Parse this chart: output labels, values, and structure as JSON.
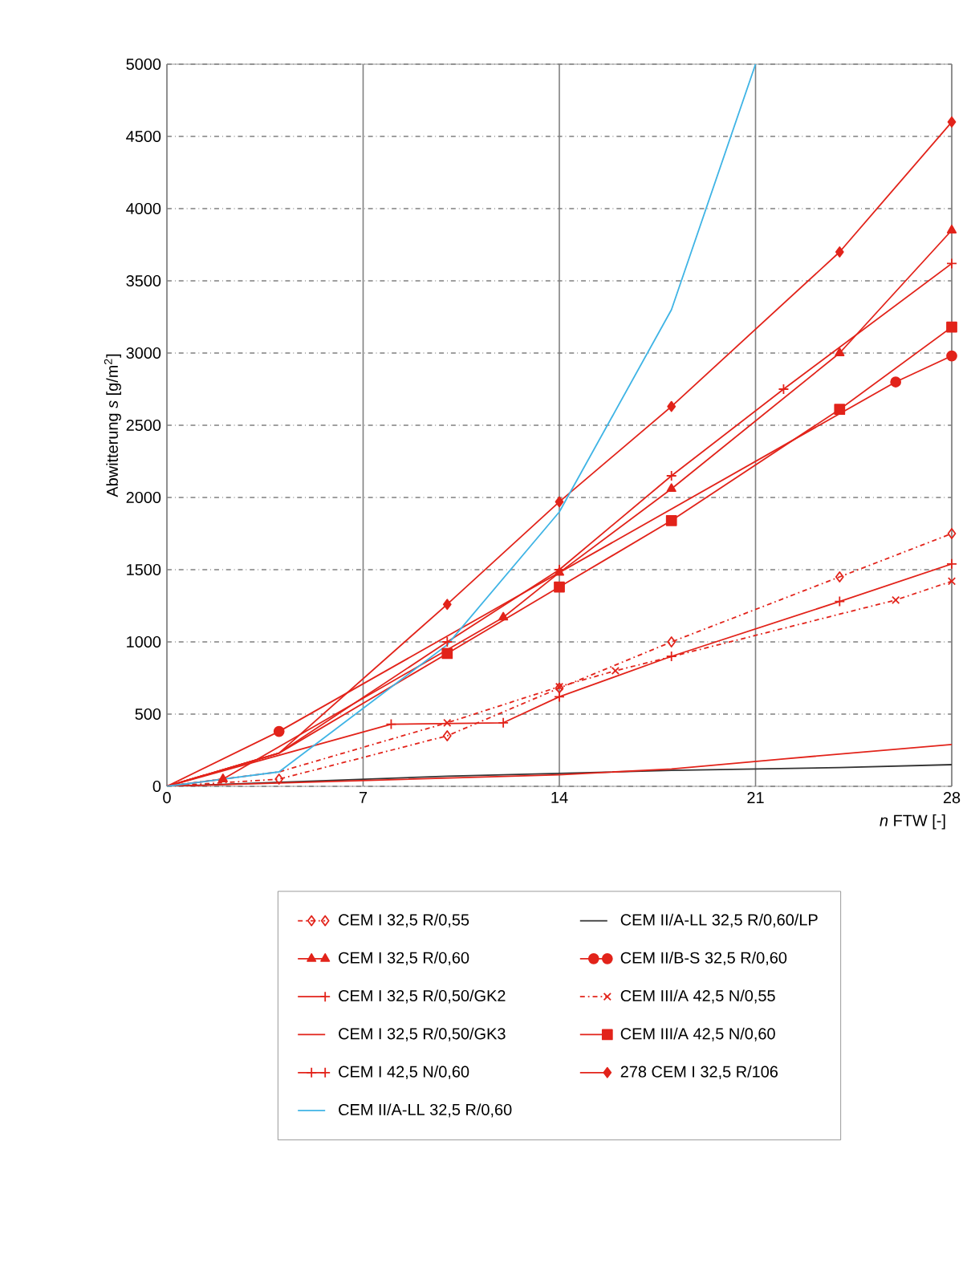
{
  "chart_data": {
    "type": "line",
    "xlabel": "*n* FTW  [-]",
    "ylabel": "Abwitterung *s*  [g/m$^{2}$]",
    "xlim": [
      0,
      28
    ],
    "xticks": [
      0,
      7,
      14,
      21,
      28
    ],
    "ylim": [
      0,
      5000
    ],
    "yticks": [
      0,
      500,
      1000,
      1500,
      2000,
      2500,
      3000,
      3500,
      4000,
      4500,
      5000
    ],
    "grid": true,
    "legend": "bottom",
    "series": [
      {
        "name": "CEM I 32,5 R/0,55",
        "color": "#e2231a",
        "line_style": "dashed",
        "marker": "diamond",
        "x": [
          0,
          4,
          10,
          14,
          18,
          24,
          28
        ],
        "values": [
          0,
          50,
          350,
          680,
          1000,
          1450,
          1750
        ]
      },
      {
        "name": "CEM I 32,5 R/0,60",
        "color": "#e2231a",
        "line_style": "solid",
        "marker": "triangle",
        "x": [
          0,
          2,
          12,
          14,
          18,
          24,
          28
        ],
        "values": [
          0,
          50,
          1170,
          1480,
          2060,
          3000,
          3850
        ]
      },
      {
        "name": "CEM I 32,5 R/0,50/GK2",
        "color": "#e2231a",
        "line_style": "solid",
        "marker": "plus",
        "x": [
          0,
          4,
          10,
          14,
          18,
          22,
          28
        ],
        "values": [
          0,
          230,
          1000,
          1500,
          2150,
          2750,
          3620
        ]
      },
      {
        "name": "CEM I 32,5 R/0,50/GK3",
        "color": "#e2231a",
        "line_style": "solid",
        "marker": "none",
        "x": [
          0,
          14,
          18,
          22,
          28
        ],
        "values": [
          0,
          80,
          120,
          190,
          290
        ]
      },
      {
        "name": "CEM I 42,5 N/0,60",
        "color": "#e2231a",
        "line_style": "solid",
        "marker": "plus",
        "x": [
          0,
          8,
          12,
          14,
          18,
          24,
          28
        ],
        "values": [
          0,
          430,
          440,
          620,
          900,
          1280,
          1540
        ]
      },
      {
        "name": "CEM II/A-LL 32,5 R/0,60",
        "color": "#3fb4e5",
        "line_style": "solid",
        "marker": "none",
        "x": [
          0,
          4,
          10,
          14,
          18,
          21
        ],
        "values": [
          0,
          100,
          980,
          1900,
          3300,
          5000
        ]
      },
      {
        "name": "CEM II/A-LL 32,5 R/0,60/LP",
        "color": "#333333",
        "line_style": "solid",
        "marker": "none",
        "x": [
          0,
          10,
          14,
          18,
          24,
          28
        ],
        "values": [
          0,
          70,
          90,
          110,
          130,
          150
        ]
      },
      {
        "name": "CEM II/B-S 32,5 R/0,60",
        "color": "#e2231a",
        "line_style": "solid",
        "marker": "circle",
        "x": [
          0,
          4,
          26,
          28
        ],
        "values": [
          0,
          380,
          2800,
          2980
        ]
      },
      {
        "name": "CEM III/A 42,5 N/0,55",
        "color": "#e2231a",
        "line_style": "dashed",
        "marker": "cross",
        "x": [
          0,
          4,
          10,
          14,
          16,
          26,
          28
        ],
        "values": [
          0,
          100,
          440,
          690,
          800,
          1290,
          1420
        ]
      },
      {
        "name": "CEM III/A 42,5 N/0,60",
        "color": "#e2231a",
        "line_style": "solid",
        "marker": "square",
        "x": [
          0,
          4,
          10,
          14,
          18,
          24,
          28
        ],
        "values": [
          0,
          230,
          920,
          1380,
          1840,
          2610,
          3180
        ]
      },
      {
        "name": "278 CEM I 32,5 R/106",
        "color": "#e2231a",
        "line_style": "solid",
        "marker": "diamond",
        "x": [
          0,
          4,
          10,
          14,
          18,
          24,
          28
        ],
        "values": [
          0,
          230,
          1260,
          1970,
          2630,
          3700,
          4600
        ]
      }
    ]
  }
}
